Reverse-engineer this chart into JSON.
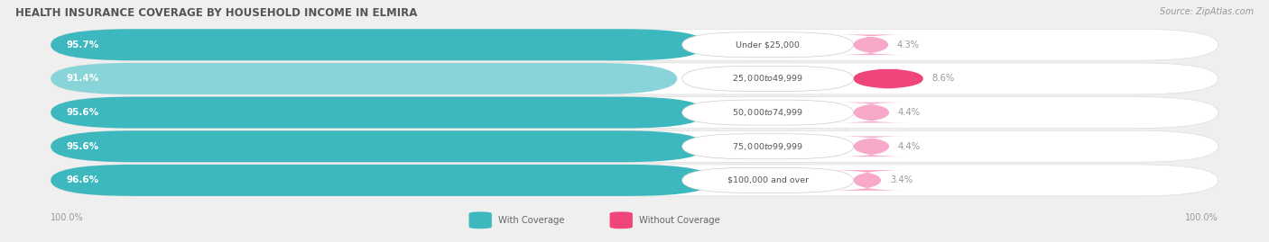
{
  "title": "HEALTH INSURANCE COVERAGE BY HOUSEHOLD INCOME IN ELMIRA",
  "source": "Source: ZipAtlas.com",
  "categories": [
    "Under $25,000",
    "$25,000 to $49,999",
    "$50,000 to $74,999",
    "$75,000 to $99,999",
    "$100,000 and over"
  ],
  "with_coverage": [
    95.7,
    91.4,
    95.6,
    95.6,
    96.6
  ],
  "without_coverage": [
    4.3,
    8.6,
    4.4,
    4.4,
    3.4
  ],
  "color_with": "#3db8be",
  "color_with_light": "#88d4d8",
  "color_without_dark": "#f0457a",
  "color_without_light": "#f8a8c8",
  "bg_color": "#efefef",
  "title_color": "#555555",
  "source_color": "#999999",
  "pct_color_inside": "#ffffff",
  "pct_color_outside": "#999999",
  "label_color": "#666666",
  "legend_with": "With Coverage",
  "legend_without": "Without Coverage",
  "footer_val": "100.0%"
}
